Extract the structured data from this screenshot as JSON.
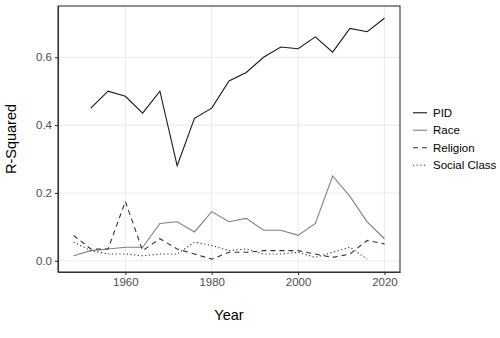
{
  "chart_data": {
    "type": "line",
    "x_label": "Year",
    "y_label": "R-Squared",
    "x": [
      1948,
      1952,
      1956,
      1960,
      1964,
      1968,
      1972,
      1976,
      1980,
      1984,
      1988,
      1992,
      1996,
      2000,
      2004,
      2008,
      2012,
      2016,
      2020
    ],
    "series": [
      {
        "name": "PID",
        "color": "#1a1a1a",
        "line_style": "solid",
        "values": [
          null,
          0.45,
          0.5,
          0.485,
          0.435,
          0.5,
          0.28,
          0.42,
          0.45,
          0.53,
          0.555,
          0.6,
          0.63,
          0.625,
          0.66,
          0.615,
          0.685,
          0.675,
          0.715
        ]
      },
      {
        "name": "Race",
        "color": "#808080",
        "line_style": "solid",
        "values": [
          0.015,
          0.03,
          0.035,
          0.04,
          0.04,
          0.11,
          0.115,
          0.085,
          0.145,
          0.115,
          0.125,
          0.09,
          0.09,
          0.075,
          0.11,
          0.25,
          0.19,
          0.115,
          0.065
        ]
      },
      {
        "name": "Religion",
        "color": "#333333",
        "line_style": "dashed",
        "values": [
          0.075,
          0.035,
          0.035,
          0.175,
          0.03,
          0.065,
          0.035,
          0.02,
          0.005,
          0.025,
          0.025,
          0.03,
          0.03,
          0.03,
          0.02,
          0.01,
          0.02,
          0.06,
          0.05
        ]
      },
      {
        "name": "Social Class",
        "color": "#333333",
        "line_style": "dotted",
        "values": [
          0.055,
          0.03,
          0.02,
          0.02,
          0.015,
          0.02,
          0.02,
          0.055,
          0.045,
          0.03,
          0.035,
          0.02,
          0.02,
          0.025,
          0.01,
          0.025,
          0.04,
          0.005,
          null
        ]
      }
    ],
    "xlim": [
      1944.4,
      2023.6
    ],
    "xticks": [
      1960,
      1980,
      2000,
      2020
    ],
    "ylim": [
      -0.033,
      0.751
    ],
    "yticks": [
      {
        "value": 0,
        "label": "0.0"
      },
      0.2,
      0.4,
      0.6
    ],
    "grid": true,
    "legend": "right"
  }
}
